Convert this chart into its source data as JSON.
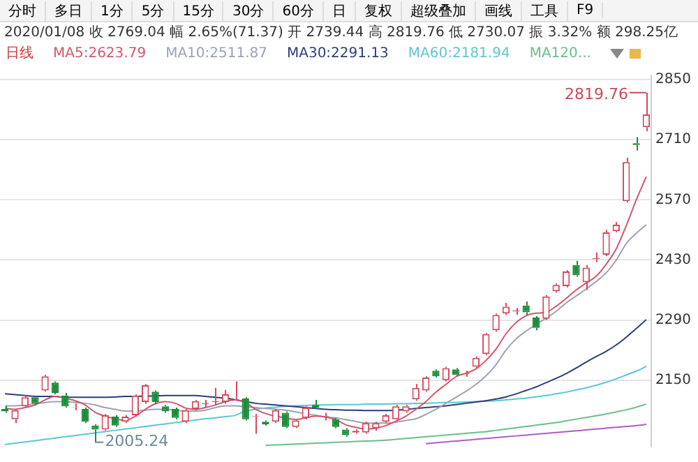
{
  "chart_data": {
    "type": "candlestick",
    "title": "2020/01/08 收 2769.04 幅 2.65%(71.37) 开 2739.44 高 2819.76 低 2730.07 振 3.32% 额 298.25亿",
    "subtitle": "日线",
    "annotations": [
      "分时",
      "多日",
      "1分",
      "5分",
      "15分",
      "30分",
      "60分",
      "日",
      "复权",
      "超级叠加",
      "画线",
      "工具",
      "F9",
      "2819.76",
      "2005.24"
    ],
    "categories": [
      null,
      null,
      null,
      null,
      null,
      null,
      null,
      null,
      null,
      null,
      null,
      null,
      null,
      null,
      null,
      null,
      null,
      null,
      null,
      null,
      null,
      null,
      null,
      null,
      null,
      null,
      null,
      null,
      null,
      null,
      null,
      null,
      null,
      null,
      null,
      null,
      null,
      null,
      null,
      null,
      null,
      null,
      null,
      null,
      null,
      null,
      null,
      null,
      null,
      null,
      null,
      null,
      null,
      null,
      null,
      null,
      null,
      null,
      null,
      null,
      null,
      null,
      null,
      null,
      null
    ],
    "ohlc": [
      [
        2083,
        2090,
        2074,
        2077
      ],
      [
        2059,
        2083,
        2050,
        2080
      ],
      [
        2089,
        2114,
        2086,
        2110
      ],
      [
        2110,
        2114,
        2092,
        2095
      ],
      [
        2126,
        2162,
        2123,
        2159
      ],
      [
        2144,
        2147,
        2117,
        2120
      ],
      [
        2114,
        2120,
        2086,
        2089
      ],
      [
        2086,
        2095,
        2080,
        2087
      ],
      [
        2083,
        2086,
        2050,
        2053
      ],
      [
        2044,
        2047,
        2005.24,
        2035
      ],
      [
        2035,
        2071,
        2032,
        2068
      ],
      [
        2065,
        2068,
        2041,
        2044
      ],
      [
        2053,
        2068,
        2050,
        2065
      ],
      [
        2068,
        2117,
        2065,
        2114
      ],
      [
        2099,
        2141,
        2095,
        2138
      ],
      [
        2123,
        2126,
        2095,
        2099
      ],
      [
        2089,
        2092,
        2074,
        2077
      ],
      [
        2083,
        2086,
        2059,
        2062
      ],
      [
        2053,
        2083,
        2050,
        2080
      ],
      [
        2083,
        2104,
        2080,
        2101
      ],
      [
        2094,
        2104,
        2086,
        2096
      ],
      [
        2099,
        2132,
        2092,
        2101
      ],
      [
        2099,
        2127,
        2095,
        2117
      ],
      [
        2110,
        2147,
        2104,
        2111
      ],
      [
        2107,
        2110,
        2056,
        2059
      ],
      [
        2065,
        2071,
        2025,
        2066
      ],
      [
        2053,
        2056,
        2044,
        2047
      ],
      [
        2053,
        2083,
        2050,
        2080
      ],
      [
        2074,
        2077,
        2038,
        2041
      ],
      [
        2041,
        2059,
        2038,
        2056
      ],
      [
        2062,
        2089,
        2059,
        2086
      ],
      [
        2092,
        2104,
        2083,
        2086
      ],
      [
        2065,
        2074,
        2056,
        2066
      ],
      [
        2059,
        2062,
        2038,
        2041
      ],
      [
        2035,
        2038,
        2018,
        2022
      ],
      [
        2028,
        2035,
        2025,
        2032
      ],
      [
        2028,
        2053,
        2025,
        2050
      ],
      [
        2038,
        2053,
        2032,
        2050
      ],
      [
        2053,
        2071,
        2050,
        2068
      ],
      [
        2059,
        2092,
        2056,
        2089
      ],
      [
        2077,
        2092,
        2074,
        2089
      ],
      [
        2105,
        2141,
        2102,
        2132
      ],
      [
        2126,
        2159,
        2123,
        2156
      ],
      [
        2172,
        2175,
        2156,
        2159
      ],
      [
        2150,
        2181,
        2147,
        2178
      ],
      [
        2175,
        2178,
        2159,
        2162
      ],
      [
        2164,
        2172,
        2158,
        2166
      ],
      [
        2181,
        2205,
        2178,
        2202
      ],
      [
        2211,
        2260,
        2208,
        2257
      ],
      [
        2266,
        2305,
        2263,
        2302
      ],
      [
        2305,
        2330,
        2302,
        2321
      ],
      [
        2310,
        2318,
        2302,
        2312
      ],
      [
        2324,
        2333,
        2302,
        2308
      ],
      [
        2296,
        2299,
        2266,
        2272
      ],
      [
        2293,
        2348,
        2290,
        2345
      ],
      [
        2357,
        2375,
        2354,
        2372
      ],
      [
        2369,
        2406,
        2366,
        2403
      ],
      [
        2418,
        2428,
        2391,
        2394
      ],
      [
        2378,
        2418,
        2360,
        2412
      ],
      [
        2432,
        2448,
        2425,
        2434
      ],
      [
        2442,
        2500,
        2439,
        2494
      ],
      [
        2497,
        2518,
        2494,
        2512
      ],
      [
        2567,
        2668,
        2564,
        2658
      ],
      [
        2702,
        2716,
        2685,
        2698
      ],
      [
        2739.44,
        2819.76,
        2730.07,
        2769.04
      ]
    ],
    "colors": [
      "#1e8c3c",
      "#d8485a",
      "#d8485a",
      "#1e8c3c",
      "#d8485a",
      "#1e8c3c",
      "#1e8c3c",
      "#d8485a",
      "#1e8c3c",
      "#1e8c3c",
      "#d8485a",
      "#1e8c3c",
      "#d8485a",
      "#d8485a",
      "#d8485a",
      "#1e8c3c",
      "#1e8c3c",
      "#1e8c3c",
      "#d8485a",
      "#d8485a",
      "#d8485a",
      "#d8485a",
      "#d8485a",
      "#d8485a",
      "#1e8c3c",
      "#d8485a",
      "#1e8c3c",
      "#d8485a",
      "#1e8c3c",
      "#d8485a",
      "#d8485a",
      "#1e8c3c",
      "#d8485a",
      "#1e8c3c",
      "#1e8c3c",
      "#d8485a",
      "#d8485a",
      "#d8485a",
      "#d8485a",
      "#d8485a",
      "#d8485a",
      "#d8485a",
      "#d8485a",
      "#1e8c3c",
      "#d8485a",
      "#1e8c3c",
      "#d8485a",
      "#d8485a",
      "#d8485a",
      "#d8485a",
      "#d8485a",
      "#d8485a",
      "#1e8c3c",
      "#1e8c3c",
      "#d8485a",
      "#d8485a",
      "#d8485a",
      "#1e8c3c",
      "#d8485a",
      "#d8485a",
      "#d8485a",
      "#d8485a",
      "#d8485a",
      "#1e8c3c",
      "#d8485a"
    ],
    "series": [
      {
        "name": "MA5:2623.79",
        "type": "line",
        "color": "#d2566e",
        "values": [
          2085,
          2082,
          2086,
          2092,
          2104,
          2112,
          2108,
          2102,
          2092,
          2075,
          2066,
          2060,
          2056,
          2066,
          2082,
          2095,
          2100,
          2096,
          2085,
          2082,
          2086,
          2092,
          2100,
          2104,
          2098,
          2082,
          2072,
          2066,
          2062,
          2058,
          2062,
          2066,
          2064,
          2058,
          2046,
          2040,
          2036,
          2038,
          2044,
          2054,
          2066,
          2082,
          2100,
          2122,
          2140,
          2158,
          2166,
          2176,
          2196,
          2222,
          2258,
          2284,
          2300,
          2306,
          2308,
          2322,
          2340,
          2360,
          2376,
          2392,
          2420,
          2456,
          2510,
          2570,
          2624
        ]
      },
      {
        "name": "MA10:2511.87",
        "type": "line",
        "color": "#9aa3b5",
        "values": [
          2090,
          2090,
          2092,
          2094,
          2098,
          2100,
          2100,
          2098,
          2096,
          2092,
          2086,
          2082,
          2078,
          2078,
          2080,
          2082,
          2082,
          2080,
          2078,
          2078,
          2080,
          2086,
          2090,
          2090,
          2088,
          2086,
          2084,
          2082,
          2080,
          2076,
          2072,
          2068,
          2064,
          2062,
          2058,
          2054,
          2050,
          2050,
          2050,
          2052,
          2056,
          2060,
          2070,
          2082,
          2096,
          2110,
          2124,
          2140,
          2160,
          2186,
          2220,
          2246,
          2264,
          2280,
          2294,
          2310,
          2330,
          2346,
          2362,
          2380,
          2400,
          2430,
          2468,
          2492,
          2512
        ]
      },
      {
        "name": "MA30:2291.13",
        "type": "line",
        "color": "#2c3e7a",
        "values": [
          2118,
          2116,
          2114,
          2112,
          2112,
          2112,
          2110,
          2110,
          2110,
          2110,
          2110,
          2111,
          2112,
          2112,
          2113,
          2113,
          2114,
          2114,
          2114,
          2114,
          2112,
          2110,
          2108,
          2104,
          2100,
          2096,
          2094,
          2092,
          2090,
          2088,
          2086,
          2084,
          2082,
          2081,
          2080,
          2080,
          2079,
          2079,
          2079,
          2080,
          2082,
          2084,
          2086,
          2088,
          2090,
          2093,
          2096,
          2099,
          2102,
          2106,
          2111,
          2118,
          2126,
          2134,
          2144,
          2154,
          2165,
          2178,
          2192,
          2205,
          2217,
          2232,
          2250,
          2270,
          2291
        ]
      },
      {
        "name": "MA60:2181.94",
        "type": "line",
        "color": "#5bc6d6",
        "values": [
          2000,
          2003,
          2006,
          2009,
          2012,
          2015,
          2018,
          2021,
          2024,
          2027,
          2030,
          2033,
          2036,
          2039,
          2042,
          2045,
          2048,
          2051,
          2054,
          2057,
          2060,
          2062,
          2065,
          2068,
          2078,
          2082,
          2085,
          2087,
          2089,
          2090,
          2091,
          2092,
          2092,
          2093,
          2093,
          2093,
          2094,
          2094,
          2094,
          2095,
          2095,
          2096,
          2096,
          2097,
          2098,
          2098,
          2099,
          2100,
          2101,
          2102,
          2104,
          2106,
          2108,
          2111,
          2114,
          2118,
          2122,
          2127,
          2132,
          2138,
          2145,
          2153,
          2162,
          2171,
          2182
        ]
      },
      {
        "name": "MA120...",
        "type": "line",
        "color": "#6abf8a",
        "values": [
          null,
          null,
          null,
          null,
          null,
          null,
          null,
          null,
          null,
          null,
          null,
          null,
          null,
          null,
          null,
          null,
          null,
          null,
          null,
          null,
          null,
          null,
          null,
          null,
          null,
          null,
          1998,
          1999,
          2000,
          2001,
          2002,
          2003,
          2004,
          2005,
          2006,
          2007,
          2008,
          2009,
          2010,
          2012,
          2014,
          2016,
          2018,
          2020,
          2022,
          2024,
          2026,
          2028,
          2030,
          2033,
          2036,
          2039,
          2042,
          2045,
          2048,
          2051,
          2055,
          2059,
          2063,
          2067,
          2071,
          2076,
          2081,
          2087,
          2094
        ]
      },
      {
        "type": "line",
        "color": "#b05cc0",
        "values": [
          null,
          null,
          null,
          null,
          null,
          null,
          null,
          null,
          null,
          null,
          null,
          null,
          null,
          null,
          null,
          null,
          null,
          null,
          null,
          null,
          null,
          null,
          null,
          null,
          null,
          null,
          null,
          null,
          null,
          null,
          null,
          null,
          null,
          null,
          null,
          null,
          null,
          null,
          null,
          null,
          null,
          null,
          2002,
          2004,
          2006,
          2008,
          2010,
          2012,
          2014,
          2016,
          2018,
          2020,
          2022,
          2024,
          2026,
          2028,
          2030,
          2032,
          2034,
          2036,
          2038,
          2040,
          2042,
          2044,
          2047
        ]
      }
    ],
    "ylim": [
      1995,
      2860
    ],
    "yticks": [
      2150,
      2290,
      2430,
      2570,
      2710,
      2850
    ],
    "grid": "y",
    "legend": "top left"
  }
}
